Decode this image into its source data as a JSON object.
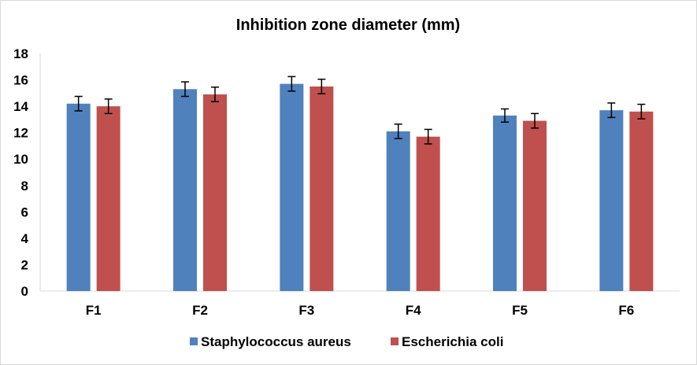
{
  "chart_data": {
    "type": "bar",
    "title": "Inhibition zone diameter (mm)",
    "xlabel": "",
    "ylabel": "",
    "categories": [
      "F1",
      "F2",
      "F3",
      "F4",
      "F5",
      "F6"
    ],
    "ylim": [
      0,
      18
    ],
    "yticks": [
      "0",
      "2",
      "4",
      "6",
      "8",
      "10",
      "12",
      "14",
      "16",
      "18"
    ],
    "grid": false,
    "legend_position": "bottom",
    "series": [
      {
        "name": "Staphylococcus aureus",
        "color": "#4f81bd",
        "values": [
          14.2,
          15.3,
          15.7,
          12.1,
          13.3,
          13.7
        ],
        "errors": [
          0.55,
          0.55,
          0.55,
          0.55,
          0.5,
          0.55
        ]
      },
      {
        "name": "Escherichia coli",
        "color": "#c0504d",
        "values": [
          14.0,
          14.9,
          15.5,
          11.7,
          12.9,
          13.6
        ],
        "errors": [
          0.55,
          0.55,
          0.55,
          0.55,
          0.55,
          0.55
        ]
      }
    ]
  }
}
